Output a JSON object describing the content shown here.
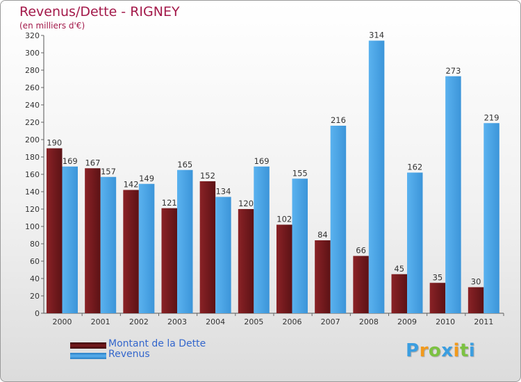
{
  "chart_data": {
    "type": "bar",
    "title": "Revenus/Dette - RIGNEY",
    "subtitle": "(en milliers d'€)",
    "categories": [
      "2000",
      "2001",
      "2002",
      "2003",
      "2004",
      "2005",
      "2006",
      "2007",
      "2008",
      "2009",
      "2010",
      "2011"
    ],
    "series": [
      {
        "name": "Montant de la Dette",
        "color": "#7a1a1e",
        "values": [
          190,
          167,
          142,
          121,
          152,
          120,
          102,
          84,
          66,
          45,
          35,
          30
        ]
      },
      {
        "name": "Revenus",
        "color": "#4aa3e6",
        "values": [
          169,
          157,
          149,
          165,
          134,
          169,
          155,
          216,
          314,
          162,
          273,
          219
        ]
      }
    ],
    "ylim": [
      0,
      320
    ],
    "yticks": [
      0,
      20,
      40,
      60,
      80,
      100,
      120,
      140,
      160,
      180,
      200,
      220,
      240,
      260,
      280,
      300,
      320
    ],
    "grid": false,
    "legend": "bottom-left"
  },
  "logo": {
    "letters": [
      "P",
      "r",
      "o",
      "x",
      "i",
      "t",
      "i"
    ],
    "colors": [
      "#3b9ee0",
      "#f29a1c",
      "#7cc242",
      "#3b9ee0",
      "#f29a1c",
      "#7cc242",
      "#3b9ee0"
    ]
  }
}
